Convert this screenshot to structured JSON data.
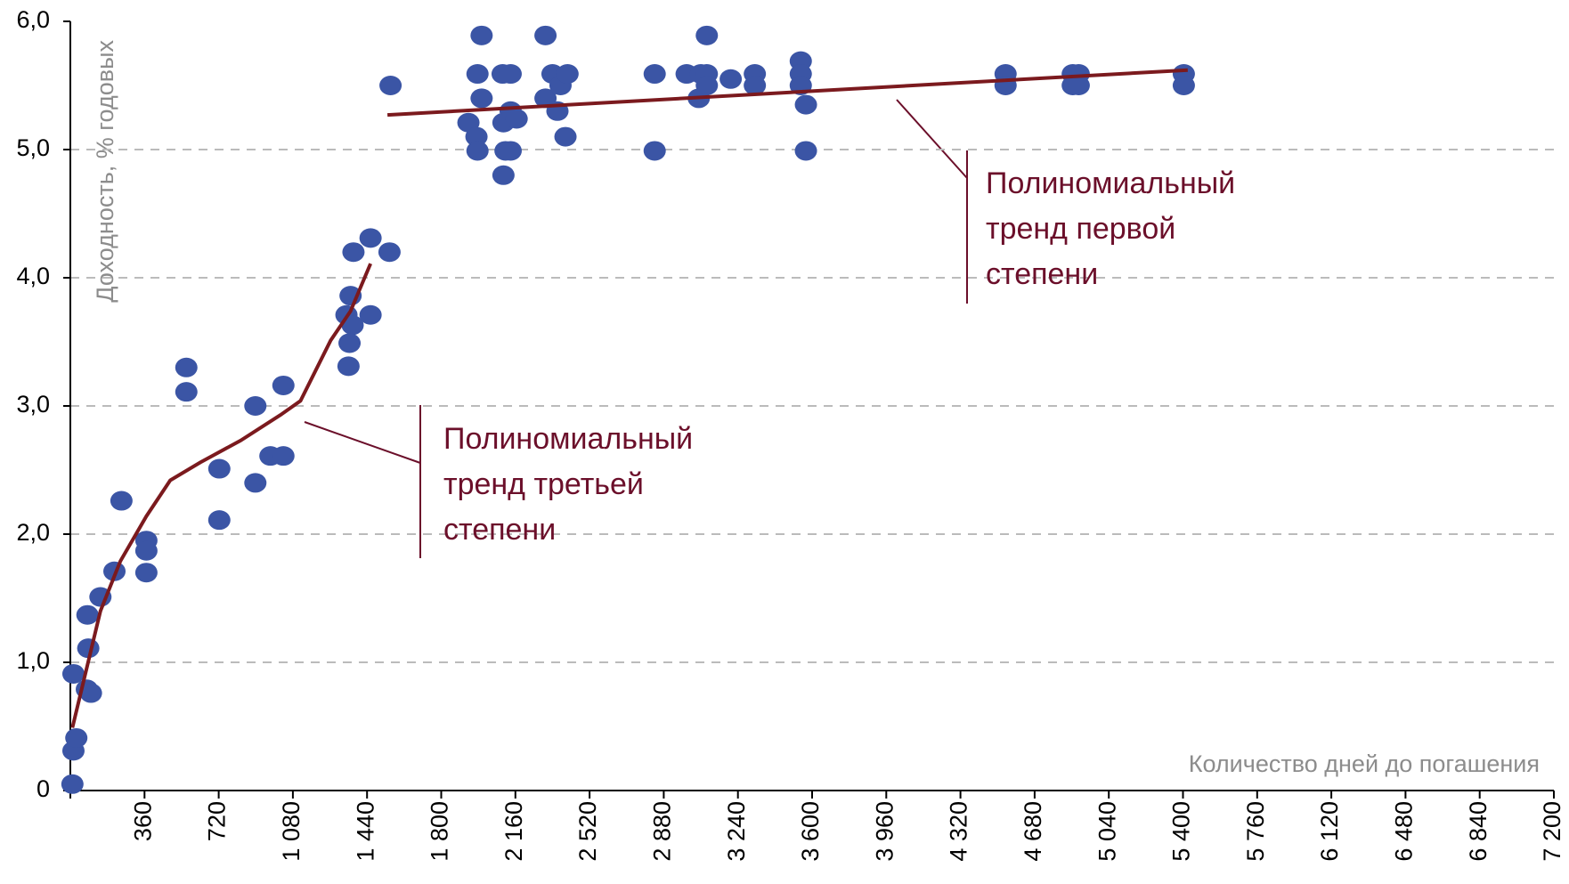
{
  "chart_data": {
    "type": "scatter",
    "x_label": "Количество дней до погашения",
    "y_label": "Доходность, % годовых",
    "xlim": [
      0,
      7200
    ],
    "ylim": [
      0,
      6
    ],
    "xticks": [
      360,
      720,
      {
        "value": 1080,
        "label": "1 080"
      },
      {
        "value": 1440,
        "label": "1 440"
      },
      {
        "value": 1800,
        "label": "1 800"
      },
      {
        "value": 2160,
        "label": "2 160"
      },
      {
        "value": 2520,
        "label": "2 520"
      },
      {
        "value": 2880,
        "label": "2 880"
      },
      {
        "value": 3240,
        "label": "3 240"
      },
      {
        "value": 3600,
        "label": "3 600"
      },
      {
        "value": 3960,
        "label": "3 960"
      },
      {
        "value": 4320,
        "label": "4 320"
      },
      {
        "value": 4680,
        "label": "4 680"
      },
      {
        "value": 5040,
        "label": "5 040"
      },
      {
        "value": 5400,
        "label": "5 400"
      },
      {
        "value": 5760,
        "label": "5 760"
      },
      {
        "value": 6120,
        "label": "6 120"
      },
      {
        "value": 6480,
        "label": "6 480"
      },
      {
        "value": 6840,
        "label": "6 840"
      },
      {
        "value": 7200,
        "label": "7 200"
      }
    ],
    "yticks": [
      0,
      {
        "value": 1,
        "label": "1,0"
      },
      {
        "value": 2,
        "label": "2,0"
      },
      {
        "value": 3,
        "label": "3,0"
      },
      {
        "value": 4,
        "label": "4,0"
      },
      {
        "value": 5,
        "label": "5,0"
      },
      {
        "value": 6,
        "label": "6,0"
      }
    ],
    "grid": true,
    "points": {
      "color": "#3b55a5",
      "x": [
        10,
        15,
        29,
        15,
        83,
        87,
        80,
        100,
        146,
        214,
        248,
        369,
        369,
        369,
        563,
        563,
        723,
        723,
        898,
        898,
        971,
        1034,
        1034,
        1340,
        1360,
        1370,
        1355,
        1350,
        1374,
        1457,
        1457,
        1549,
        1554,
        1932,
        1971,
        1976,
        1996,
        1976,
        1996,
        2098,
        2137,
        2102,
        2112,
        2102,
        2137,
        2137,
        2166,
        2306,
        2306,
        2340,
        2364,
        2379,
        2413,
        2403,
        2836,
        2836,
        2991,
        3050,
        3060,
        3089,
        3089,
        3089,
        3205,
        3322,
        3322,
        3545,
        3545,
        3545,
        3570,
        3570,
        4539,
        4539,
        4865,
        4865,
        4894,
        4894,
        5404,
        5404
      ],
      "y": [
        0.05,
        0.31,
        0.41,
        0.91,
        1.37,
        1.11,
        0.79,
        0.76,
        1.51,
        1.71,
        2.26,
        1.95,
        1.87,
        1.7,
        3.3,
        3.11,
        2.51,
        2.11,
        3.0,
        2.4,
        2.61,
        2.61,
        3.16,
        3.71,
        3.86,
        3.63,
        3.49,
        3.31,
        4.2,
        4.31,
        3.71,
        4.2,
        5.5,
        5.21,
        5.1,
        4.99,
        5.89,
        5.59,
        5.4,
        5.59,
        5.59,
        5.21,
        4.99,
        4.8,
        5.3,
        4.99,
        5.24,
        5.89,
        5.4,
        5.59,
        5.3,
        5.5,
        5.59,
        5.1,
        5.59,
        4.99,
        5.59,
        5.4,
        5.59,
        5.89,
        5.59,
        5.5,
        5.55,
        5.59,
        5.5,
        5.69,
        5.59,
        5.5,
        5.35,
        4.99,
        5.59,
        5.5,
        5.59,
        5.5,
        5.59,
        5.5,
        5.59,
        5.5
      ]
    },
    "trends": [
      {
        "color": "#7b1a1e",
        "x": [
          10,
          146,
          243,
          369,
          485,
          631,
          826,
          1020,
          1117,
          1263,
          1360,
          1457
        ],
        "y": [
          0.49,
          1.4,
          1.79,
          2.14,
          2.42,
          2.56,
          2.73,
          2.93,
          3.04,
          3.51,
          3.74,
          4.11
        ]
      },
      {
        "color": "#7b1a1e",
        "x": [
          1539,
          5423
        ],
        "y": [
          5.27,
          5.62
        ]
      }
    ],
    "annotations": [
      {
        "lines": [
          "Полиномиальный",
          "тренд третьей",
          "степени"
        ],
        "color": "#6b0f2a"
      },
      {
        "lines": [
          "Полиномиальный",
          "тренд первой",
          "степени"
        ],
        "color": "#6b0f2a"
      }
    ]
  }
}
